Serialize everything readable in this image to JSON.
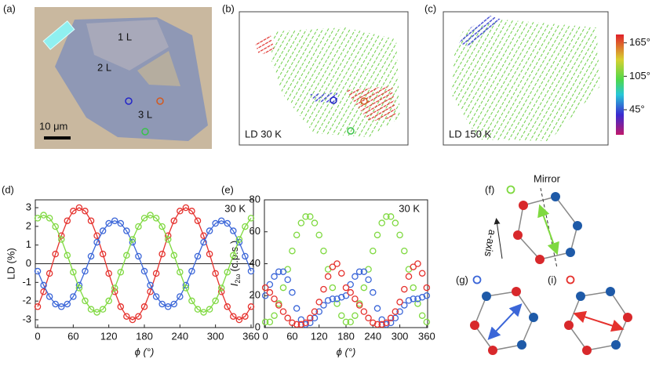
{
  "chart_data": [
    {
      "type": "line",
      "panel_label": "(d)",
      "annotation": "30 K",
      "x_label": "ϕ (°)",
      "y_label": "LD (%)",
      "x": [
        0,
        10,
        20,
        30,
        40,
        50,
        60,
        70,
        80,
        90,
        100,
        110,
        120,
        130,
        140,
        150,
        160,
        170,
        180,
        190,
        200,
        210,
        220,
        230,
        240,
        250,
        260,
        270,
        280,
        290,
        300,
        310,
        320,
        330,
        340,
        350,
        360
      ],
      "xlim": [
        -4,
        364
      ],
      "xticks": [
        0,
        60,
        120,
        180,
        240,
        300,
        360
      ],
      "ylim": [
        -3.42,
        3.42
      ],
      "yticks": [
        -3,
        -2,
        -1,
        0,
        1,
        2,
        3
      ],
      "zero_line": true,
      "series": [
        {
          "name": "red",
          "color": "#e5312d",
          "values": [
            -2.3,
            -1.5,
            -0.52,
            0.52,
            1.5,
            2.3,
            2.82,
            3,
            2.82,
            2.3,
            1.5,
            0.52,
            -0.52,
            -1.5,
            -2.3,
            -2.82,
            -3,
            -2.82,
            -2.3,
            -1.5,
            -0.52,
            0.52,
            1.5,
            2.3,
            2.82,
            3,
            2.82,
            2.3,
            1.5,
            0.52,
            -0.52,
            -1.5,
            -2.3,
            -2.82,
            -3,
            -2.82,
            -2.3
          ]
        },
        {
          "name": "blue",
          "color": "#3b66d8",
          "values": [
            -0.4,
            -1.15,
            -1.76,
            -2.16,
            -2.3,
            -2.16,
            -1.76,
            -1.15,
            -0.4,
            0.4,
            1.15,
            1.76,
            2.16,
            2.3,
            2.16,
            1.76,
            1.15,
            0.4,
            -0.4,
            -1.15,
            -1.76,
            -2.16,
            -2.3,
            -2.16,
            -1.76,
            -1.15,
            -0.4,
            0.4,
            1.15,
            1.76,
            2.16,
            2.3,
            2.16,
            1.76,
            1.15,
            0.4,
            -0.4
          ]
        },
        {
          "name": "green",
          "color": "#7fd940",
          "values": [
            2.44,
            2.6,
            2.44,
            1.99,
            1.3,
            0.45,
            -0.45,
            -1.3,
            -1.99,
            -2.44,
            -2.6,
            -2.44,
            -1.99,
            -1.3,
            -0.45,
            0.45,
            1.3,
            1.99,
            2.44,
            2.6,
            2.44,
            1.99,
            1.3,
            0.45,
            -0.45,
            -1.3,
            -1.99,
            -2.44,
            -2.6,
            -2.44,
            -1.99,
            -1.3,
            -0.45,
            0.45,
            1.3,
            1.99,
            2.44
          ]
        }
      ]
    },
    {
      "type": "scatter",
      "panel_label": "(e)",
      "annotation": "30 K",
      "x_label": "ϕ (°)",
      "y_label": {
        "symbol": "I",
        "subscript": "2ω",
        "unit": "(c.p.s.)"
      },
      "x": [
        0,
        10,
        20,
        30,
        40,
        50,
        60,
        70,
        80,
        90,
        100,
        110,
        120,
        130,
        140,
        150,
        160,
        170,
        180,
        190,
        200,
        210,
        220,
        230,
        240,
        250,
        260,
        270,
        280,
        290,
        300,
        310,
        320,
        330,
        340,
        350,
        360
      ],
      "xlim": [
        -2,
        362
      ],
      "xticks": [
        0,
        60,
        120,
        180,
        240,
        300,
        360
      ],
      "ylim": [
        0,
        80
      ],
      "yticks": [
        0,
        20,
        40,
        60,
        80
      ],
      "series": [
        {
          "name": "green",
          "color": "#7fd940",
          "values": [
            3.5,
            3.5,
            7.5,
            15,
            25,
            36.5,
            48,
            58,
            65.5,
            69.5,
            69.5,
            65.5,
            58,
            48,
            36.5,
            25,
            15,
            7.5,
            3.5,
            3.5,
            7.5,
            15,
            25,
            36.5,
            48,
            58,
            65.5,
            69.5,
            69.5,
            65.5,
            58,
            48,
            36.5,
            25,
            15,
            7.5,
            3.5
          ]
        },
        {
          "name": "blue",
          "color": "#3b66d8",
          "values": [
            20,
            27,
            32,
            35,
            35,
            30,
            22,
            12,
            5,
            2,
            3,
            6,
            10,
            14,
            17,
            18,
            18,
            19,
            20,
            27,
            32,
            35,
            35,
            30,
            22,
            12,
            5,
            2,
            3,
            6,
            10,
            14,
            17,
            18,
            18,
            19,
            20
          ]
        },
        {
          "name": "red",
          "color": "#e5312d",
          "values": [
            25,
            22,
            18,
            14,
            10,
            6,
            3,
            2,
            2,
            3,
            6,
            10,
            16,
            24,
            32,
            38,
            40,
            34,
            25,
            22,
            18,
            14,
            10,
            6,
            3,
            2,
            2,
            3,
            6,
            10,
            16,
            24,
            32,
            38,
            40,
            34,
            25
          ]
        }
      ]
    }
  ],
  "panels": {
    "a": {
      "label": "(a)",
      "layers": [
        "1 L",
        "2 L",
        "3 L"
      ],
      "scale_bar": "10 μm"
    },
    "b": {
      "label": "(b)",
      "caption": "LD 30 K"
    },
    "c": {
      "label": "(c)",
      "caption": "LD 150 K",
      "colorbar": {
        "lim": [
          0,
          180
        ],
        "ticks": [
          {
            "value": 165,
            "label": "165°"
          },
          {
            "value": 105,
            "label": "105°"
          },
          {
            "value": 45,
            "label": "45°"
          }
        ]
      }
    },
    "f": {
      "label": "(f)",
      "mirror": "Mirror",
      "axis": "a-axis"
    },
    "g": {
      "label": "(g)"
    },
    "i": {
      "label": "(i)"
    }
  }
}
